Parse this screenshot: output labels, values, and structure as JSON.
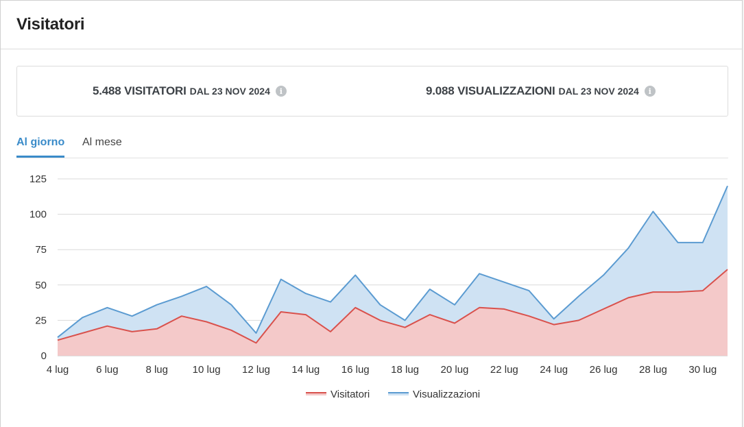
{
  "header": {
    "title": "Visitatori"
  },
  "stats": [
    {
      "value": "5.488 VISITATORI",
      "since": "DAL 23 NOV 2024",
      "info_icon": "info-icon"
    },
    {
      "value": "9.088 VISUALIZZAZIONI",
      "since": "DAL 23 NOV 2024",
      "info_icon": "info-icon"
    }
  ],
  "tabs": [
    {
      "label": "Al giorno",
      "active": true
    },
    {
      "label": "Al mese",
      "active": false
    }
  ],
  "colors": {
    "accent": "#3a8bc9",
    "visitors_line": "#d9514c",
    "visitors_fill": "#f4c9c9",
    "views_line": "#5b9bd1",
    "views_fill": "#cfe2f3"
  },
  "chart_data": {
    "type": "area",
    "x": [
      "4 lug",
      "5 lug",
      "6 lug",
      "7 lug",
      "8 lug",
      "9 lug",
      "10 lug",
      "11 lug",
      "12 lug",
      "13 lug",
      "14 lug",
      "15 lug",
      "16 lug",
      "17 lug",
      "18 lug",
      "19 lug",
      "20 lug",
      "21 lug",
      "22 lug",
      "23 lug",
      "24 lug",
      "25 lug",
      "26 lug",
      "27 lug",
      "28 lug",
      "29 lug",
      "30 lug",
      "31 lug"
    ],
    "x_tick_labels": [
      "4 lug",
      "6 lug",
      "8 lug",
      "10 lug",
      "12 lug",
      "14 lug",
      "16 lug",
      "18 lug",
      "20 lug",
      "22 lug",
      "24 lug",
      "26 lug",
      "28 lug",
      "30 lug"
    ],
    "series": [
      {
        "name": "Visualizzazioni",
        "values": [
          13,
          27,
          34,
          28,
          36,
          42,
          49,
          36,
          16,
          54,
          44,
          38,
          57,
          36,
          25,
          47,
          36,
          58,
          52,
          46,
          26,
          42,
          57,
          76,
          102,
          80,
          80,
          120
        ]
      },
      {
        "name": "Visitatori",
        "values": [
          11,
          16,
          21,
          17,
          19,
          28,
          24,
          18,
          9,
          31,
          29,
          17,
          34,
          25,
          20,
          29,
          23,
          34,
          33,
          28,
          22,
          25,
          33,
          41,
          45,
          45,
          46,
          61
        ]
      }
    ],
    "ylim": [
      0,
      125
    ],
    "yticks": [
      0,
      25,
      50,
      75,
      100,
      125
    ],
    "grid": true,
    "legend": "bottom-center"
  }
}
